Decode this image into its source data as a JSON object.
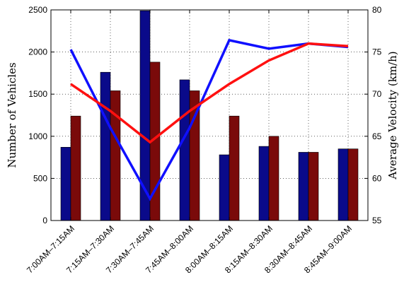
{
  "chart_data": {
    "type": "bar",
    "categories": [
      "7:00AM–7:15AM",
      "7:15AM–7:30AM",
      "7:30AM–7:45AM",
      "7:45AM–8:00AM",
      "8:00AM–8:15AM",
      "8:15AM–8:30AM",
      "8:30AM–8:45AM",
      "8:45AM–9:00AM"
    ],
    "bar_series": [
      {
        "values": [
          870,
          1760,
          2490,
          1670,
          780,
          880,
          810,
          850
        ],
        "color": "#0a0a8a"
      },
      {
        "values": [
          1240,
          1540,
          1880,
          1540,
          1240,
          1000,
          810,
          850
        ],
        "color": "#7a0a0a"
      }
    ],
    "line_series": [
      {
        "values": [
          75.3,
          66.0,
          57.6,
          66.0,
          76.4,
          75.4,
          76.0,
          75.6
        ],
        "color": "#1010ff"
      },
      {
        "values": [
          71.2,
          68.0,
          64.3,
          68.0,
          71.2,
          74.0,
          76.0,
          75.7
        ],
        "color": "#ff1010"
      }
    ],
    "ylabel": "Number of Vehicles",
    "ylim": [
      0,
      2500
    ],
    "yticks": [
      "0",
      "500",
      "1000",
      "1500",
      "2000",
      "2500"
    ],
    "y2label": "Average Velocity (km/h)",
    "y2lim": [
      55,
      80
    ],
    "y2ticks": [
      "55",
      "60",
      "65",
      "70",
      "75",
      "80"
    ],
    "grid": true
  }
}
